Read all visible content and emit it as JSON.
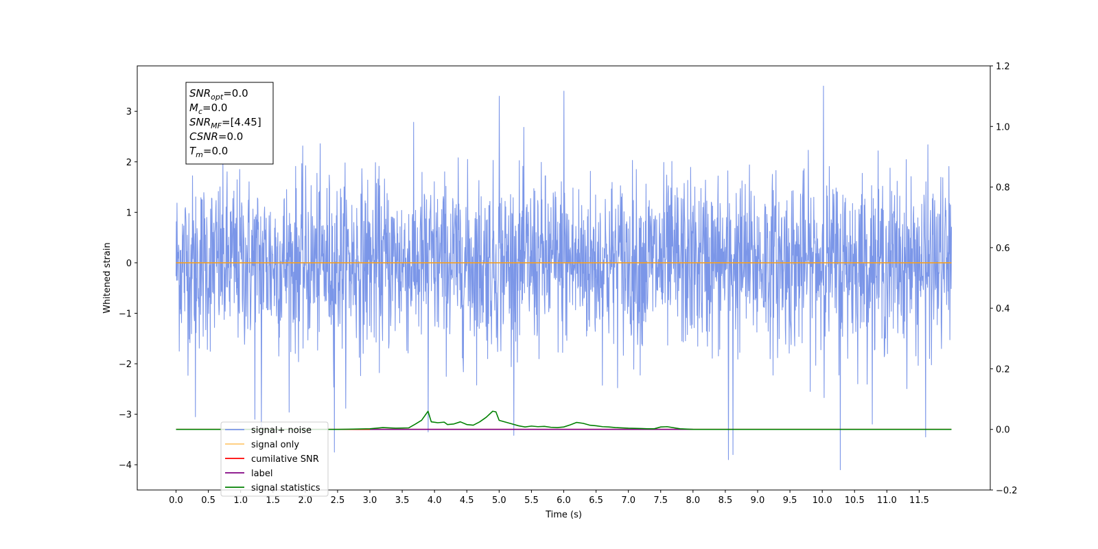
{
  "chart_data": {
    "type": "line",
    "xlabel": "Time (s)",
    "ylabel": "Whitened strain",
    "xlim": [
      -0.6,
      12.6
    ],
    "ylim": [
      -4.5,
      3.9
    ],
    "y2lim": [
      -0.2,
      1.2
    ],
    "x_ticks": [
      0.0,
      0.5,
      1.0,
      1.5,
      2.0,
      2.5,
      3.0,
      3.5,
      4.0,
      4.5,
      5.0,
      5.5,
      6.0,
      6.5,
      7.0,
      7.5,
      8.0,
      8.5,
      9.0,
      9.5,
      10.0,
      10.5,
      11.0,
      11.5
    ],
    "x_tick_labels": [
      "0.0",
      "0.5",
      "1.0",
      "1.5",
      "2.0",
      "2.5",
      "3.0",
      "3.5",
      "4.0",
      "4.5",
      "5.0",
      "5.5",
      "6.0",
      "6.5",
      "7.0",
      "7.5",
      "8.0",
      "8.5",
      "9.0",
      "9.5",
      "10.0",
      "10.5",
      "11.0",
      "11.5"
    ],
    "y_ticks": [
      -4,
      -3,
      -2,
      -1,
      0,
      1,
      2,
      3
    ],
    "y_tick_labels": [
      "−4",
      "−3",
      "−2",
      "−1",
      "0",
      "1",
      "2",
      "3"
    ],
    "y2_ticks": [
      -0.2,
      0.0,
      0.2,
      0.4,
      0.6,
      0.8,
      1.0,
      1.2
    ],
    "y2_tick_labels": [
      "−0.2",
      "0.0",
      "0.2",
      "0.4",
      "0.6",
      "0.8",
      "1.0",
      "1.2"
    ],
    "grid": false,
    "legend_position": "lower-left",
    "annotation": {
      "lines": [
        {
          "sym": "SNR",
          "sub": "opt",
          "rest": "=0.0"
        },
        {
          "sym": "M",
          "sub": "c",
          "rest": "=0.0"
        },
        {
          "sym": "SNR",
          "sub": "MF",
          "rest": "=[4.45]"
        },
        {
          "sym": "CSNR",
          "sub": "",
          "rest": "=0.0"
        },
        {
          "sym": "T",
          "sub": "m",
          "rest": "=0.0"
        }
      ]
    },
    "series": [
      {
        "name": "signal+ noise",
        "color": "#7b96e8",
        "axis": "left",
        "style": "noise",
        "x_range": [
          0.0,
          12.0
        ],
        "y_range": [
          -4.1,
          3.5
        ],
        "peaks": [
          {
            "x": 0.3,
            "y": -3.05
          },
          {
            "x": 1.22,
            "y": -3.1
          },
          {
            "x": 1.32,
            "y": -3.25
          },
          {
            "x": 2.45,
            "y": -3.75
          },
          {
            "x": 3.9,
            "y": -3.35
          },
          {
            "x": 5.0,
            "y": 3.3
          },
          {
            "x": 6.0,
            "y": 3.4
          },
          {
            "x": 8.55,
            "y": -3.9
          },
          {
            "x": 8.62,
            "y": -3.8
          },
          {
            "x": 10.02,
            "y": 3.5
          },
          {
            "x": 10.28,
            "y": -4.1
          },
          {
            "x": 11.6,
            "y": -3.45
          }
        ]
      },
      {
        "name": "signal only",
        "color": "#f5a020",
        "axis": "left",
        "x": [
          0.0,
          12.0
        ],
        "y": [
          0.0,
          0.0
        ]
      },
      {
        "name": "cumilative SNR",
        "color": "#ff0000",
        "axis": "right",
        "x": [
          0.0,
          12.0
        ],
        "y": [
          0.0,
          0.0
        ]
      },
      {
        "name": "label",
        "color": "#800080",
        "axis": "right",
        "x": [
          3.0,
          8.0
        ],
        "y": [
          0.0,
          0.0
        ]
      },
      {
        "name": "signal statistics",
        "color": "#008000",
        "axis": "right",
        "x": [
          0.0,
          2.5,
          3.0,
          3.2,
          3.4,
          3.6,
          3.7,
          3.8,
          3.9,
          3.95,
          4.05,
          4.15,
          4.2,
          4.3,
          4.4,
          4.5,
          4.6,
          4.7,
          4.8,
          4.9,
          4.95,
          5.0,
          5.1,
          5.2,
          5.3,
          5.4,
          5.5,
          5.6,
          5.7,
          5.8,
          5.9,
          6.0,
          6.1,
          6.2,
          6.3,
          6.4,
          6.5,
          6.6,
          6.7,
          6.8,
          7.0,
          7.2,
          7.3,
          7.4,
          7.5,
          7.6,
          7.8,
          8.0,
          12.0
        ],
        "y": [
          0.0,
          0.0,
          0.002,
          0.006,
          0.004,
          0.005,
          0.017,
          0.03,
          0.06,
          0.025,
          0.022,
          0.024,
          0.016,
          0.018,
          0.025,
          0.016,
          0.014,
          0.025,
          0.04,
          0.06,
          0.058,
          0.03,
          0.024,
          0.018,
          0.012,
          0.008,
          0.011,
          0.009,
          0.01,
          0.007,
          0.006,
          0.008,
          0.015,
          0.023,
          0.02,
          0.014,
          0.012,
          0.009,
          0.008,
          0.006,
          0.004,
          0.003,
          0.002,
          0.002,
          0.008,
          0.009,
          0.002,
          0.0,
          0.0
        ]
      }
    ]
  }
}
